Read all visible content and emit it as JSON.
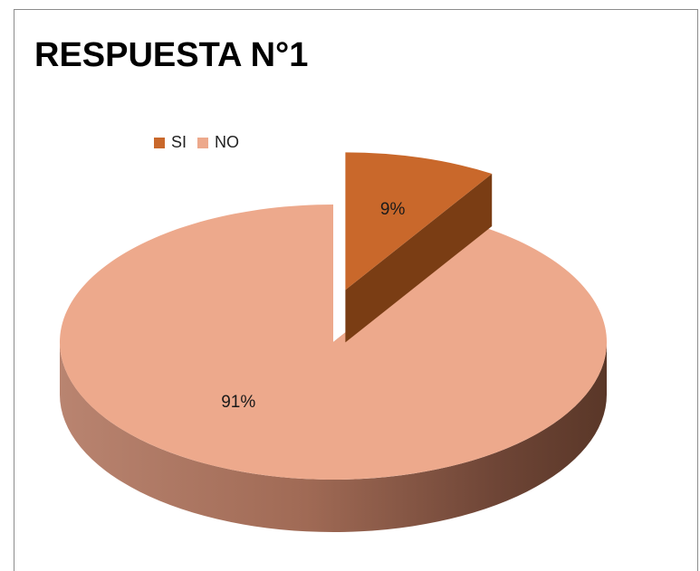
{
  "chart_data": {
    "type": "pie",
    "title": "RESPUESTA N°1",
    "categories": [
      "SI",
      "NO"
    ],
    "values": [
      9,
      91
    ],
    "labels": [
      "9%",
      "91%"
    ],
    "colors": [
      "#c9682b",
      "#eda98c"
    ],
    "style": "3d-exploded",
    "legend_position": "top-left"
  }
}
